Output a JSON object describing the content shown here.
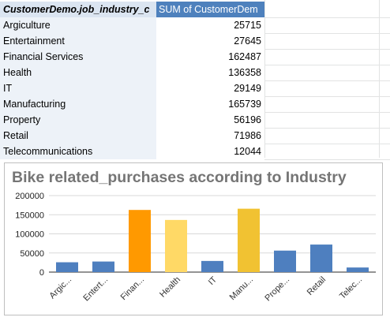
{
  "pivot": {
    "header_row_label": "CustomerDemo.job_industry_c",
    "header_value_label": "SUM of CustomerDem",
    "rows": [
      {
        "label": "Argiculture",
        "value": "25715"
      },
      {
        "label": "Entertainment",
        "value": "27645"
      },
      {
        "label": "Financial Services",
        "value": "162487"
      },
      {
        "label": "Health",
        "value": "136358"
      },
      {
        "label": "IT",
        "value": "29149"
      },
      {
        "label": "Manufacturing",
        "value": "165739"
      },
      {
        "label": "Property",
        "value": "56196"
      },
      {
        "label": "Retail",
        "value": "71986"
      },
      {
        "label": "Telecommunications",
        "value": "12044"
      }
    ]
  },
  "chart_data": {
    "type": "bar",
    "title": "Bike related_purchases according to Industry",
    "categories": [
      "Argic...",
      "Entert...",
      "Finan...",
      "Health",
      "IT",
      "Manu...",
      "Prope...",
      "Retail",
      "Telec..."
    ],
    "values": [
      25715,
      27645,
      162487,
      136358,
      29149,
      165739,
      56196,
      71986,
      12044
    ],
    "bar_colors": [
      "#4e7fbf",
      "#4e7fbf",
      "#ff9900",
      "#ffd966",
      "#4e7fbf",
      "#f1c232",
      "#4e7fbf",
      "#4e7fbf",
      "#4e7fbf"
    ],
    "yticks": [
      "200000",
      "150000",
      "100000",
      "50000",
      "0"
    ],
    "ylim": [
      0,
      200000
    ],
    "grid": true,
    "xlabel": "",
    "ylabel": ""
  }
}
